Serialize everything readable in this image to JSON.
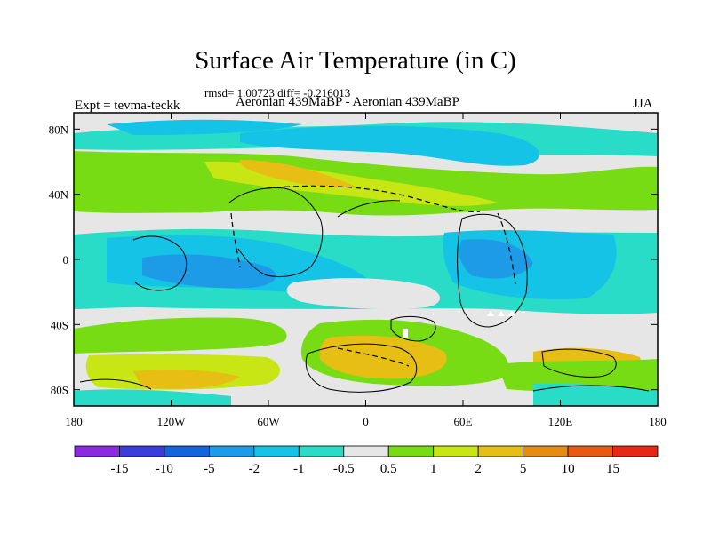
{
  "title": "Surface Air Temperature (in C)",
  "stats": "rmsd= 1.00723 diff= -0.216013",
  "expt_label": "Expt = tevma-teckk",
  "comparison_label": "Aeronian 439MaBP - Aeronian 439MaBP",
  "season_label": "JJA",
  "map_data": {
    "type": "filled-contour-map",
    "variable": "Surface Air Temperature difference",
    "lon_range": [
      -180,
      180
    ],
    "lat_range": [
      -90,
      90
    ],
    "x_ticks": [
      {
        "lon": -180,
        "label": "180"
      },
      {
        "lon": -120,
        "label": "120W"
      },
      {
        "lon": -60,
        "label": "60W"
      },
      {
        "lon": 0,
        "label": "0"
      },
      {
        "lon": 60,
        "label": "60E"
      },
      {
        "lon": 120,
        "label": "120E"
      },
      {
        "lon": 180,
        "label": "180"
      }
    ],
    "y_ticks": [
      {
        "lat": 80,
        "label": "80N"
      },
      {
        "lat": 40,
        "label": "40N"
      },
      {
        "lat": 0,
        "label": "0"
      },
      {
        "lat": -40,
        "label": "40S"
      },
      {
        "lat": -80,
        "label": "80S"
      }
    ]
  },
  "colorbar": {
    "colors": [
      "#8a2be2",
      "#3c3cdc",
      "#1464dc",
      "#1e9be6",
      "#14c3e6",
      "#28dcc8",
      "#e6e6e6",
      "#78dc14",
      "#c8e614",
      "#e6be14",
      "#e68c14",
      "#e65a14",
      "#e62814"
    ],
    "labels": [
      "-15",
      "-10",
      "-5",
      "-2",
      "-1",
      "-0.5",
      "0.5",
      "1",
      "2",
      "5",
      "10",
      "15"
    ]
  }
}
